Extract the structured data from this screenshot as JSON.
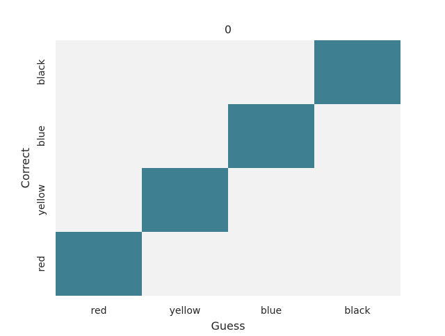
{
  "chart_data": {
    "type": "heatmap",
    "title": "0",
    "xlabel": "Guess",
    "ylabel": "Correct",
    "x_categories": [
      "red",
      "yellow",
      "blue",
      "black"
    ],
    "y_categories": [
      "red",
      "yellow",
      "blue",
      "black"
    ],
    "values": [
      [
        1,
        0,
        0,
        0
      ],
      [
        0,
        1,
        0,
        0
      ],
      [
        0,
        0,
        1,
        0
      ],
      [
        0,
        0,
        0,
        1
      ]
    ],
    "colors": {
      "low": "#f2f2f2",
      "high": "#3e7f92",
      "text": "#262626"
    },
    "colorbar": false,
    "grid": false
  }
}
